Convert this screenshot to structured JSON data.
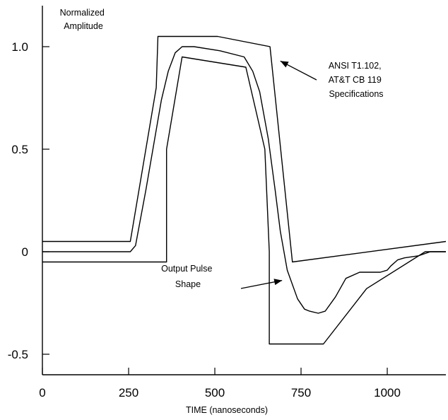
{
  "chart_data": {
    "type": "line",
    "title": "",
    "ylabel_lines": [
      "Normalized",
      "Amplitude"
    ],
    "xlabel": "TIME (nanoseconds)",
    "xlim": [
      0,
      1170
    ],
    "ylim": [
      -0.6,
      1.2
    ],
    "x_ticks": [
      0,
      250,
      500,
      750,
      1000
    ],
    "x_tick_labels": [
      "0",
      "250",
      "500",
      "750",
      "1000"
    ],
    "y_ticks": [
      1.0,
      0.5,
      0,
      -0.5
    ],
    "y_tick_labels": [
      "1.0",
      "0.5",
      "0",
      "-0.5"
    ],
    "grid": false,
    "series": [
      {
        "name": "",
        "role": "upper-mask",
        "x": [
          0,
          255,
          330,
          335,
          508,
          660,
          725,
          1170
        ],
        "y": [
          0.05,
          0.05,
          0.8,
          1.05,
          1.05,
          1.0,
          -0.05,
          0.05
        ]
      },
      {
        "name": "",
        "role": "lower-mask",
        "x": [
          0,
          360,
          360,
          370,
          405,
          590,
          645,
          658,
          658,
          815,
          940,
          1110,
          1170
        ],
        "y": [
          -0.05,
          -0.05,
          0.5,
          0.6,
          0.95,
          0.9,
          0.5,
          0.0,
          -0.45,
          -0.45,
          -0.18,
          0.0,
          0.0
        ]
      },
      {
        "name": "",
        "role": "output-pulse",
        "x": [
          0,
          255,
          270,
          300,
          345,
          365,
          385,
          405,
          440,
          515,
          585,
          610,
          630,
          655,
          675,
          690,
          710,
          740,
          760,
          775,
          800,
          820,
          850,
          880,
          920,
          960,
          980,
          1000,
          1010,
          1030,
          1050,
          1090,
          1125,
          1170
        ],
        "y": [
          0.0,
          0.0,
          0.03,
          0.3,
          0.74,
          0.88,
          0.97,
          1.0,
          1.0,
          0.98,
          0.95,
          0.88,
          0.78,
          0.55,
          0.3,
          0.1,
          -0.09,
          -0.23,
          -0.28,
          -0.29,
          -0.3,
          -0.29,
          -0.22,
          -0.13,
          -0.1,
          -0.1,
          -0.1,
          -0.09,
          -0.07,
          -0.04,
          -0.03,
          -0.02,
          0.0,
          0.0
        ]
      }
    ],
    "annotations": [
      {
        "id": "spec",
        "lines": [
          "ANSI T1.102,",
          "AT&T CB 119",
          "Specifications"
        ],
        "arrow_to": [
          690,
          0.93
        ]
      },
      {
        "id": "pulse",
        "lines": [
          "Output Pulse",
          "Shape"
        ],
        "arrow_to": [
          695,
          -0.14
        ]
      }
    ]
  }
}
